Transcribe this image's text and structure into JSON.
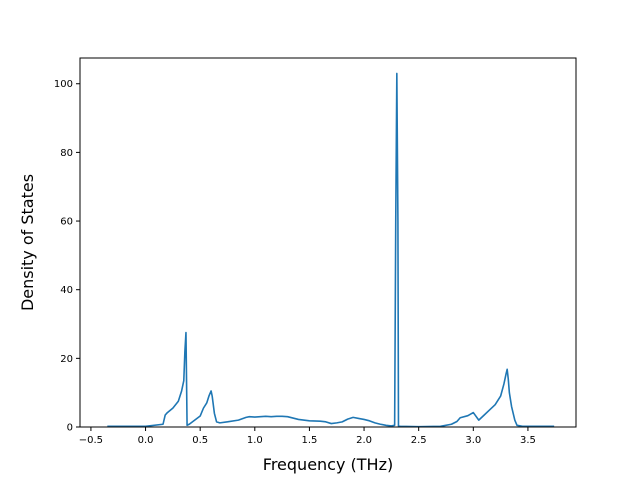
{
  "chart_data": {
    "type": "line",
    "xlabel": "Frequency (THz)",
    "ylabel": "Density of States",
    "xlim": [
      -0.6,
      3.94
    ],
    "ylim": [
      0,
      107.5
    ],
    "xticks": [
      -0.5,
      0.0,
      0.5,
      1.0,
      1.5,
      2.0,
      2.5,
      3.0,
      3.5
    ],
    "xtick_labels": [
      "−0.5",
      "0.0",
      "0.5",
      "1.0",
      "1.5",
      "2.0",
      "2.5",
      "3.0",
      "3.5"
    ],
    "yticks": [
      0,
      20,
      40,
      60,
      80,
      100
    ],
    "ytick_labels": [
      "0",
      "20",
      "40",
      "60",
      "80",
      "100"
    ],
    "grid": false,
    "series": [
      {
        "color": "#1f77b4",
        "x": [
          -0.35,
          -0.2,
          0.0,
          0.16,
          0.18,
          0.2,
          0.25,
          0.3,
          0.33,
          0.35,
          0.36,
          0.37,
          0.38,
          0.4,
          0.45,
          0.5,
          0.53,
          0.56,
          0.58,
          0.6,
          0.61,
          0.63,
          0.65,
          0.68,
          0.75,
          0.85,
          0.92,
          0.95,
          1.0,
          1.05,
          1.1,
          1.15,
          1.2,
          1.25,
          1.3,
          1.4,
          1.5,
          1.6,
          1.65,
          1.7,
          1.75,
          1.8,
          1.85,
          1.9,
          1.95,
          2.0,
          2.05,
          2.1,
          2.15,
          2.2,
          2.25,
          2.28,
          2.29,
          2.3,
          2.31,
          2.315,
          2.33,
          2.5,
          2.7,
          2.8,
          2.85,
          2.88,
          2.95,
          3.0,
          3.05,
          3.1,
          3.15,
          3.2,
          3.25,
          3.28,
          3.3,
          3.31,
          3.32,
          3.33,
          3.35,
          3.38,
          3.4,
          3.45,
          3.6,
          3.74
        ],
        "y": [
          0.2,
          0.2,
          0.2,
          0.8,
          3.5,
          4.2,
          5.5,
          7.5,
          10.5,
          13.5,
          22.0,
          27.5,
          0.5,
          0.8,
          2.0,
          3.2,
          5.5,
          7.0,
          9.0,
          10.5,
          9.0,
          4.0,
          1.5,
          1.2,
          1.5,
          2.0,
          2.8,
          3.0,
          2.9,
          3.0,
          3.1,
          3.0,
          3.1,
          3.1,
          3.0,
          2.2,
          1.8,
          1.7,
          1.5,
          1.0,
          1.2,
          1.5,
          2.3,
          2.8,
          2.5,
          2.2,
          1.8,
          1.2,
          0.8,
          0.5,
          0.3,
          0.5,
          60.0,
          103.0,
          60.0,
          0.3,
          0.2,
          0.1,
          0.2,
          0.8,
          1.6,
          2.7,
          3.3,
          4.2,
          2.0,
          3.5,
          5.0,
          6.5,
          9.0,
          12.5,
          15.5,
          16.8,
          14.0,
          10.0,
          6.0,
          2.0,
          0.5,
          0.2,
          0.2,
          0.2
        ]
      }
    ]
  }
}
